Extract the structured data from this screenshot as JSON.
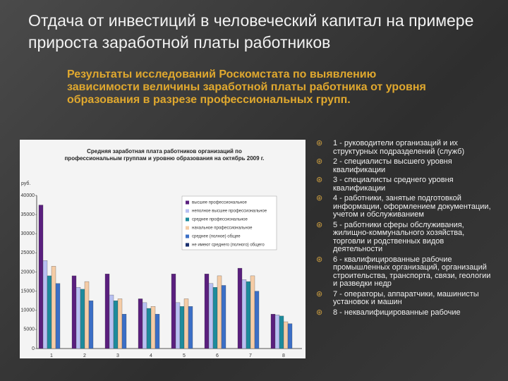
{
  "slide": {
    "title": "Отдача от инвестиций в человеческий капитал на примере прироста заработной платы работников",
    "subtitle": "Результаты исследований Роскомстата по выявлению зависимости величины заработной платы работника от уровня образования в разрезе профессиональных групп.",
    "list": [
      "1 - руководители организаций и их структурных подразделений (служб)",
      "2 - специалисты высшего уровня квалификации",
      "3 - специалисты среднего уровня квалификации",
      "4 - работники, занятые подготовкой информации, оформлением документации, учетом и обслуживанием",
      "5 - работники сферы обслуживания, жилищно-коммунального хозяйства, торговли и родственных видов деятельности",
      "6 - квалифицированные рабочие промышленных организаций, организаций строительства, транспорта, связи, геологии и разведки недр",
      "7 - операторы, аппаратчики, машинисты установок и машин",
      "8 - неквалифицированные рабочие"
    ]
  },
  "chart_data": {
    "type": "bar",
    "title": "Средняя заработная плата работников организаций по профессиональным группам и уровню образования на октябрь 2009 г.",
    "ylabel": "руб.",
    "categories": [
      "1",
      "2",
      "3",
      "4",
      "5",
      "6",
      "7",
      "8"
    ],
    "series": [
      {
        "name": "высшее профессиональное",
        "color": "#5a1f7e",
        "values": [
          37500,
          19000,
          19500,
          13000,
          19500,
          19500,
          21000,
          9000
        ]
      },
      {
        "name": "неполное высшее профессиональное",
        "color": "#b8c0f2",
        "values": [
          23000,
          16000,
          14000,
          12000,
          12000,
          17000,
          18000,
          8800
        ]
      },
      {
        "name": "среднее профессиональное",
        "color": "#1d8b9c",
        "values": [
          19000,
          15500,
          12500,
          10500,
          11000,
          16000,
          17500,
          8500
        ]
      },
      {
        "name": "начальное профессиональное",
        "color": "#f5cca6",
        "values": [
          21500,
          17500,
          13000,
          11000,
          13000,
          19000,
          19000,
          7000
        ]
      },
      {
        "name": "среднее (полное) общее",
        "color": "#3b6fc6",
        "values": [
          17000,
          12500,
          9000,
          9000,
          11000,
          16500,
          15000,
          6500
        ]
      },
      {
        "name": "не имеют среднего (полного) общего",
        "color": "#1a2f6e",
        "values": [
          null,
          null,
          null,
          null,
          null,
          null,
          null,
          null
        ]
      }
    ],
    "ylim": [
      0,
      40000
    ],
    "yticks": [
      0,
      5000,
      10000,
      15000,
      20000,
      25000,
      30000,
      35000,
      40000
    ],
    "grid": false
  }
}
